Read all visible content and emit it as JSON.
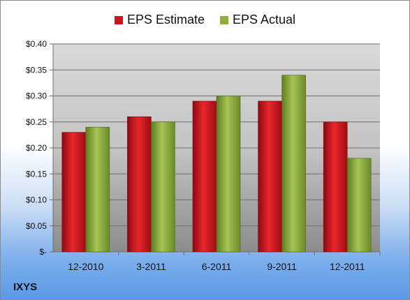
{
  "chart_data": {
    "type": "bar",
    "categories": [
      "12-2010",
      "3-2011",
      "6-2011",
      "9-2011",
      "12-2011"
    ],
    "series": [
      {
        "name": "EPS Estimate",
        "values": [
          0.23,
          0.26,
          0.29,
          0.29,
          0.25
        ],
        "color": "#c8141c"
      },
      {
        "name": "EPS Actual",
        "values": [
          0.24,
          0.25,
          0.3,
          0.34,
          0.18
        ],
        "color": "#8faf3c"
      }
    ],
    "ylim": [
      0,
      0.4
    ],
    "yticks": [
      0,
      0.05,
      0.1,
      0.15,
      0.2,
      0.25,
      0.3,
      0.35,
      0.4
    ],
    "ytick_labels": [
      "$-",
      "$0.05",
      "$0.10",
      "$0.15",
      "$0.20",
      "$0.25",
      "$0.30",
      "$0.35",
      "$0.40"
    ],
    "grid": true,
    "legend_position": "top",
    "title": "",
    "xlabel": "",
    "ylabel": ""
  },
  "legend": {
    "estimate_label": "EPS Estimate",
    "actual_label": "EPS Actual"
  },
  "ticker": "IXYS"
}
